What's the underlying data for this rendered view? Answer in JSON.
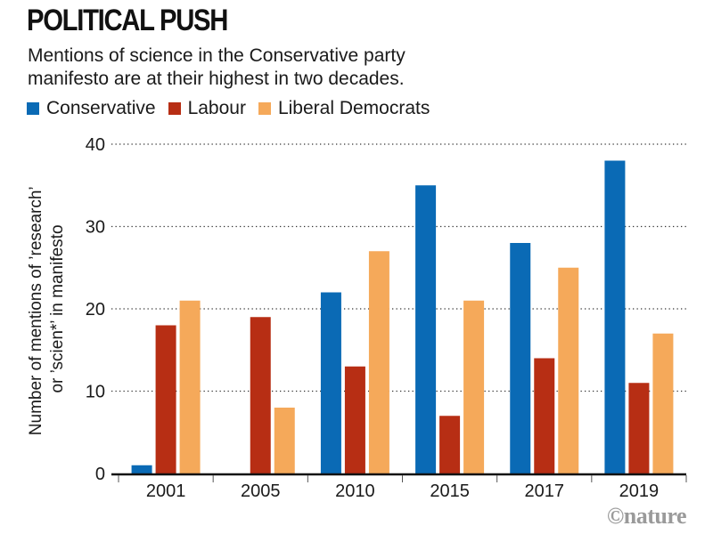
{
  "chart_data": {
    "type": "bar",
    "title": "POLITICAL PUSH",
    "subtitle": "Mentions of science in the Conservative party manifesto are at their highest in two decades.",
    "xlabel": "",
    "ylabel": "Number of mentions of ’research’ or ’scien*’ in manifesto",
    "ylabel_lines": [
      "Number of mentions of ’research’",
      "or ’scien*’ in manifesto"
    ],
    "categories": [
      "2001",
      "2005",
      "2010",
      "2015",
      "2017",
      "2019"
    ],
    "series": [
      {
        "name": "Conservative",
        "color": "#0a6ab5",
        "values": [
          1,
          0,
          22,
          35,
          28,
          38
        ]
      },
      {
        "name": "Labour",
        "color": "#b72e14",
        "values": [
          18,
          19,
          13,
          7,
          14,
          11
        ]
      },
      {
        "name": "Liberal Democrats",
        "color": "#f5a95a",
        "values": [
          21,
          8,
          27,
          21,
          25,
          17
        ]
      }
    ],
    "ylim": [
      0,
      40
    ],
    "yticks": [
      0,
      10,
      20,
      30,
      40
    ],
    "grid": true,
    "legend_position": "top-left",
    "credit": "©nature"
  }
}
